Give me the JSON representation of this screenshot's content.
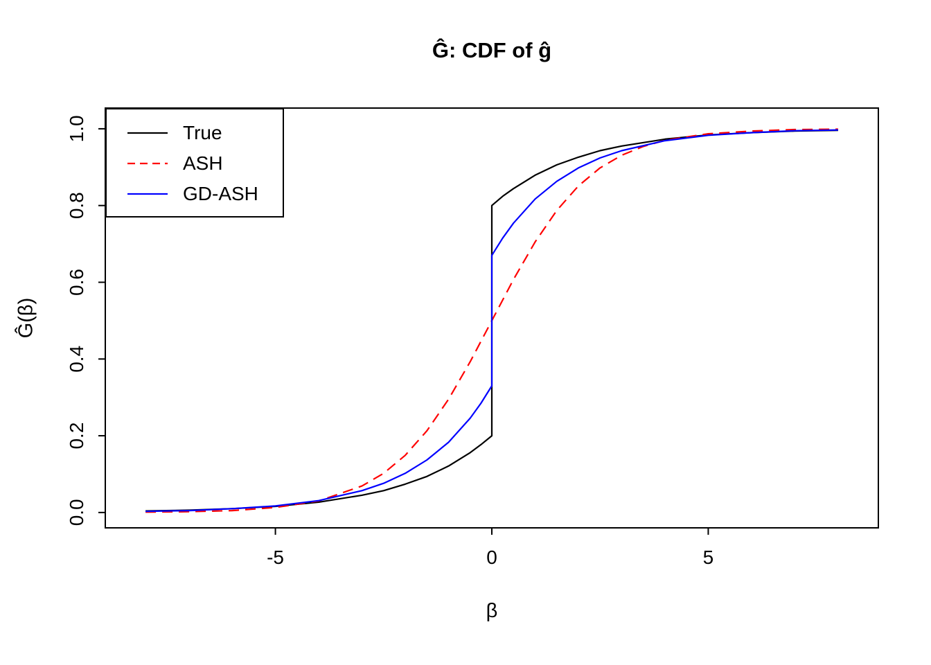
{
  "title": "Ĝ: CDF of ĝ",
  "xlabel": "β",
  "ylabel": "Ĝ(β)",
  "axes": {
    "x_range": [
      -8.93,
      8.93
    ],
    "y_range": [
      -0.04,
      1.054
    ],
    "x_ticks": [
      -5,
      0,
      5
    ],
    "x_tick_labels": [
      "-5",
      "0",
      "5"
    ],
    "y_ticks": [
      0.0,
      0.2,
      0.4,
      0.6,
      0.8,
      1.0
    ],
    "y_tick_labels": [
      "0.0",
      "0.2",
      "0.4",
      "0.6",
      "0.8",
      "1.0"
    ],
    "grid": "off"
  },
  "legend": {
    "position": "top-left",
    "entries": [
      "True",
      "ASH",
      "GD-ASH"
    ]
  },
  "chart_data": {
    "type": "line",
    "title": "Ĝ: CDF of ĝ",
    "xlabel": "β",
    "ylabel": "Ĝ(β)",
    "xlim": [
      -8.93,
      8.93
    ],
    "ylim": [
      -0.04,
      1.054
    ],
    "series": [
      {
        "name": "True",
        "color": "#000000",
        "dash": "solid",
        "x": [
          -8,
          -7,
          -6,
          -5,
          -4,
          -3,
          -2.5,
          -2,
          -1.5,
          -1,
          -0.5,
          -0.25,
          0,
          0,
          0.25,
          0.5,
          1,
          1.5,
          2,
          2.5,
          3,
          4,
          5,
          6,
          7,
          8
        ],
        "y": [
          0.004,
          0.006,
          0.01,
          0.016,
          0.027,
          0.045,
          0.057,
          0.074,
          0.094,
          0.121,
          0.156,
          0.177,
          0.2,
          0.8,
          0.824,
          0.844,
          0.879,
          0.906,
          0.926,
          0.943,
          0.955,
          0.973,
          0.984,
          0.99,
          0.994,
          0.996
        ]
      },
      {
        "name": "ASH",
        "color": "#ff0000",
        "dash": "dashed",
        "x": [
          -8,
          -7,
          -6,
          -5,
          -4,
          -3,
          -2.5,
          -2,
          -1.5,
          -1,
          -0.5,
          0,
          0.5,
          1,
          1.5,
          2,
          2.5,
          3,
          3.5,
          4,
          5,
          6,
          7,
          8
        ],
        "y": [
          0.001,
          0.002,
          0.005,
          0.013,
          0.03,
          0.069,
          0.102,
          0.149,
          0.213,
          0.295,
          0.393,
          0.5,
          0.607,
          0.705,
          0.787,
          0.851,
          0.898,
          0.931,
          0.954,
          0.97,
          0.987,
          0.994,
          0.998,
          0.999
        ]
      },
      {
        "name": "GD-ASH",
        "color": "#0000ff",
        "dash": "solid",
        "x": [
          -8,
          -7,
          -6,
          -5,
          -4,
          -3,
          -2.5,
          -2,
          -1.5,
          -1,
          -0.5,
          -0.25,
          0,
          0,
          0.25,
          0.5,
          1,
          1.5,
          2,
          2.5,
          3,
          4,
          5,
          6,
          7,
          8
        ],
        "y": [
          0.003,
          0.005,
          0.01,
          0.017,
          0.031,
          0.057,
          0.076,
          0.102,
          0.137,
          0.183,
          0.246,
          0.285,
          0.33,
          0.67,
          0.715,
          0.754,
          0.817,
          0.863,
          0.898,
          0.924,
          0.943,
          0.969,
          0.983,
          0.99,
          0.995,
          0.997
        ]
      }
    ]
  }
}
